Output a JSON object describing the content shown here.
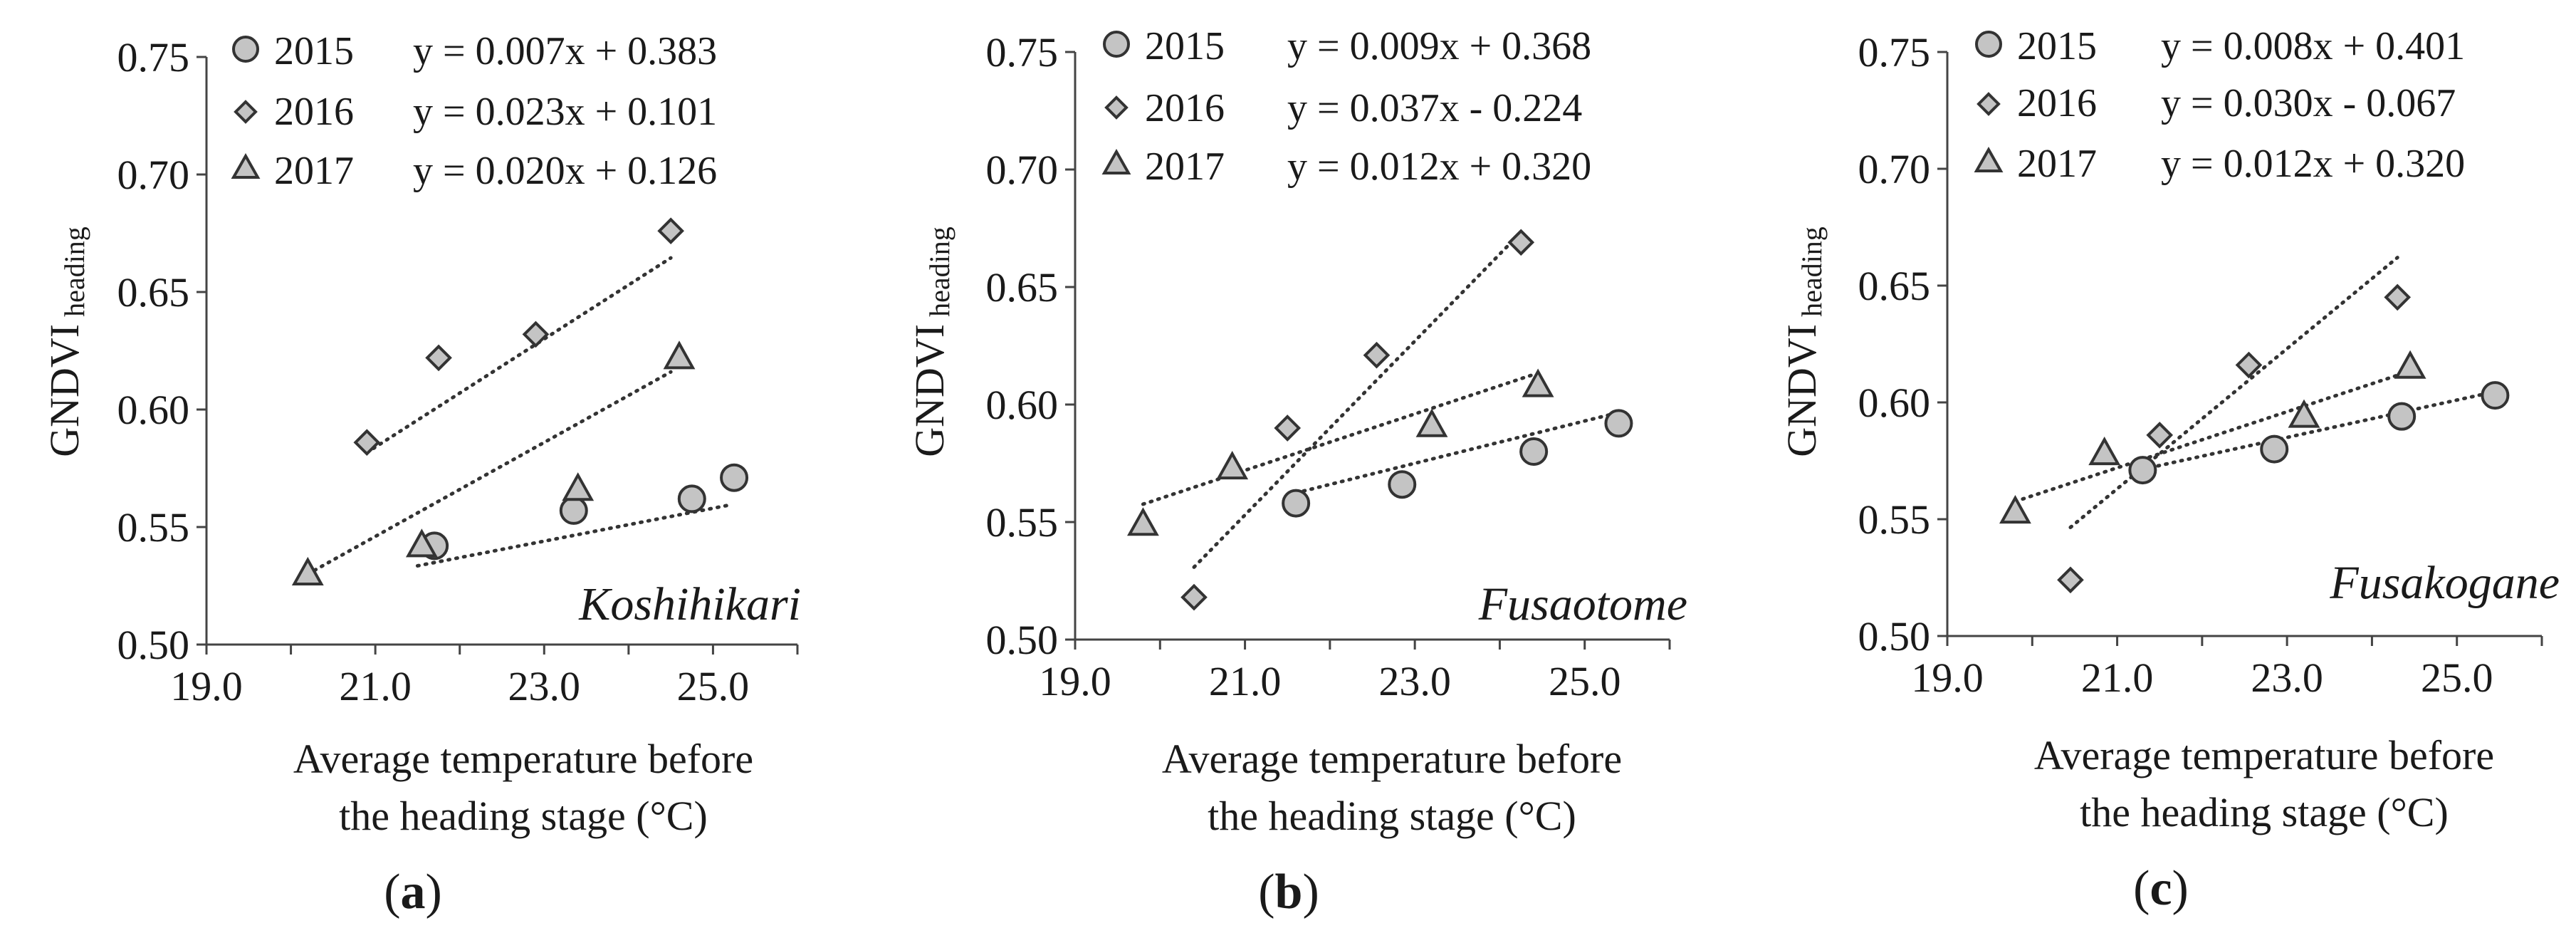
{
  "colors": {
    "marker_fill": "#c4c4c4",
    "marker_stroke": "#333333",
    "axis": "#444444",
    "text": "#1a1a1a"
  },
  "chart_data": [
    {
      "type": "scatter",
      "panel_label": "a",
      "cultivar": "Koshihikari",
      "ylabel": "GNDVI",
      "ylabel_sub": "heading",
      "xlabel_line1": "Average temperature before",
      "xlabel_line2": "the heading stage (°C)",
      "xlim": [
        19.0,
        26.0
      ],
      "ylim": [
        0.5,
        0.75
      ],
      "x_ticks": [
        "19.0",
        "21.0",
        "23.0",
        "25.0"
      ],
      "y_ticks": [
        "0.50",
        "0.55",
        "0.60",
        "0.65",
        "0.70",
        "0.75"
      ],
      "series": [
        {
          "name": "2015",
          "marker": "circle",
          "equation": "y = 0.007x + 0.383",
          "slope": 0.007,
          "intercept": 0.383,
          "fit_x": [
            21.5,
            25.2
          ],
          "points": [
            [
              21.7,
              0.542
            ],
            [
              23.35,
              0.557
            ],
            [
              24.75,
              0.562
            ],
            [
              25.25,
              0.571
            ]
          ]
        },
        {
          "name": "2016",
          "marker": "diamond",
          "equation": "y = 0.023x + 0.101",
          "slope": 0.023,
          "intercept": 0.101,
          "fit_x": [
            20.9,
            24.5
          ],
          "points": [
            [
              20.9,
              0.586
            ],
            [
              21.75,
              0.622
            ],
            [
              22.9,
              0.632
            ],
            [
              24.5,
              0.676
            ]
          ]
        },
        {
          "name": "2017",
          "marker": "triangle",
          "equation": "y = 0.020x + 0.126",
          "slope": 0.02,
          "intercept": 0.126,
          "fit_x": [
            20.2,
            24.5
          ],
          "points": [
            [
              20.2,
              0.53
            ],
            [
              21.55,
              0.542
            ],
            [
              23.4,
              0.566
            ],
            [
              24.6,
              0.622
            ]
          ]
        }
      ]
    },
    {
      "type": "scatter",
      "panel_label": "b",
      "cultivar": "Fusaotome",
      "ylabel": "GNDVI",
      "ylabel_sub": "heading",
      "xlabel_line1": "Average temperature before",
      "xlabel_line2": "the heading stage (°C)",
      "xlim": [
        19.0,
        26.0
      ],
      "ylim": [
        0.5,
        0.75
      ],
      "x_ticks": [
        "19.0",
        "21.0",
        "23.0",
        "25.0"
      ],
      "y_ticks": [
        "0.50",
        "0.55",
        "0.60",
        "0.65",
        "0.70",
        "0.75"
      ],
      "series": [
        {
          "name": "2015",
          "marker": "circle",
          "equation": "y = 0.009x + 0.368",
          "slope": 0.009,
          "intercept": 0.368,
          "fit_x": [
            21.6,
            25.4
          ],
          "points": [
            [
              21.6,
              0.558
            ],
            [
              22.85,
              0.566
            ],
            [
              24.4,
              0.58
            ],
            [
              25.4,
              0.592
            ]
          ]
        },
        {
          "name": "2016",
          "marker": "diamond",
          "equation": "y = 0.037x - 0.224",
          "slope": 0.037,
          "intercept": -0.224,
          "fit_x": [
            20.4,
            24.2
          ],
          "points": [
            [
              20.4,
              0.518
            ],
            [
              21.5,
              0.59
            ],
            [
              22.55,
              0.621
            ],
            [
              24.25,
              0.669
            ]
          ]
        },
        {
          "name": "2017",
          "marker": "triangle",
          "equation": "y = 0.012x + 0.320",
          "slope": 0.012,
          "intercept": 0.32,
          "fit_x": [
            19.8,
            24.4
          ],
          "points": [
            [
              19.8,
              0.549
            ],
            [
              20.85,
              0.573
            ],
            [
              23.2,
              0.591
            ],
            [
              24.45,
              0.608
            ]
          ]
        }
      ]
    },
    {
      "type": "scatter",
      "panel_label": "c",
      "cultivar": "Fusakogane",
      "ylabel": "GNDVI",
      "ylabel_sub": "heading",
      "xlabel_line1": "Average temperature before",
      "xlabel_line2": "the heading stage (°C)",
      "xlim": [
        19.0,
        26.0
      ],
      "ylim": [
        0.5,
        0.75
      ],
      "x_ticks": [
        "19.0",
        "21.0",
        "23.0",
        "25.0"
      ],
      "y_ticks": [
        "0.50",
        "0.55",
        "0.60",
        "0.65",
        "0.70",
        "0.75"
      ],
      "series": [
        {
          "name": "2015",
          "marker": "circle",
          "equation": "y = 0.008x + 0.401",
          "slope": 0.008,
          "intercept": 0.401,
          "fit_x": [
            21.3,
            25.4
          ],
          "points": [
            [
              21.3,
              0.571
            ],
            [
              22.85,
              0.58
            ],
            [
              24.35,
              0.594
            ],
            [
              25.45,
              0.603
            ]
          ]
        },
        {
          "name": "2016",
          "marker": "diamond",
          "equation": "y = 0.030x - 0.067",
          "slope": 0.03,
          "intercept": -0.067,
          "fit_x": [
            20.45,
            24.3
          ],
          "points": [
            [
              20.45,
              0.524
            ],
            [
              21.5,
              0.586
            ],
            [
              22.55,
              0.616
            ],
            [
              24.3,
              0.645
            ]
          ]
        },
        {
          "name": "2017",
          "marker": "triangle",
          "equation": "y = 0.012x + 0.320",
          "slope": 0.012,
          "intercept": 0.32,
          "fit_x": [
            19.8,
            24.4
          ],
          "points": [
            [
              19.8,
              0.553
            ],
            [
              20.85,
              0.578
            ],
            [
              23.2,
              0.594
            ],
            [
              24.45,
              0.615
            ]
          ]
        }
      ]
    }
  ]
}
